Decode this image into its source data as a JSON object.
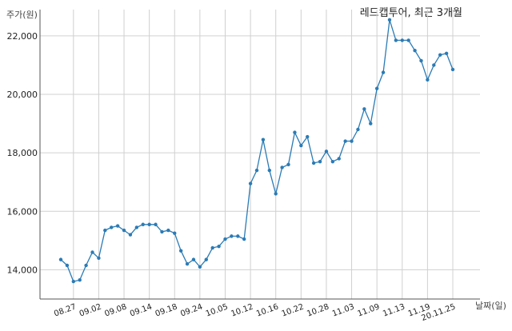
{
  "chart_data": {
    "type": "line",
    "title": "레드캡투어, 최근 3개월",
    "xlabel": "날짜(일)",
    "ylabel": "주가(원)",
    "ylim": [
      13000,
      22900
    ],
    "y_ticks": [
      14000,
      16000,
      18000,
      20000,
      22000
    ],
    "y_tick_labels": [
      "14,000",
      "16,000",
      "18,000",
      "20,000",
      "22,000"
    ],
    "x_tick_labels": [
      "08.27",
      "09.02",
      "09.08",
      "09.14",
      "09.18",
      "09.24",
      "10.05",
      "10.12",
      "10.16",
      "10.22",
      "10.28",
      "11.03",
      "11.09",
      "11.13",
      "11.19",
      "20.11.25"
    ],
    "x_tick_index": [
      2,
      6,
      10,
      14,
      18,
      22,
      26,
      30,
      34,
      38,
      42,
      46,
      50,
      54,
      58,
      62
    ],
    "grid": true,
    "color": "#2b7bb5",
    "series": [
      {
        "values": [
          14350,
          14150,
          13600,
          13650,
          14150,
          14600,
          14400,
          15350,
          15450,
          15500,
          15350,
          15200,
          15450,
          15550,
          15550,
          15550,
          15300,
          15350,
          15250,
          14650,
          14200,
          14350,
          14100,
          14350,
          14750,
          14800,
          15050,
          15150,
          15150,
          15050,
          16950,
          17400,
          18450,
          17400,
          16600,
          17500,
          17600,
          18700,
          18250,
          18550,
          17650,
          17700,
          18050,
          17700,
          17800,
          18400,
          18400,
          18800,
          19500,
          19000,
          20200,
          20750,
          22550,
          21850,
          21850,
          21850,
          21500,
          21150,
          20500,
          21000,
          21350,
          21400,
          20850
        ]
      }
    ]
  }
}
